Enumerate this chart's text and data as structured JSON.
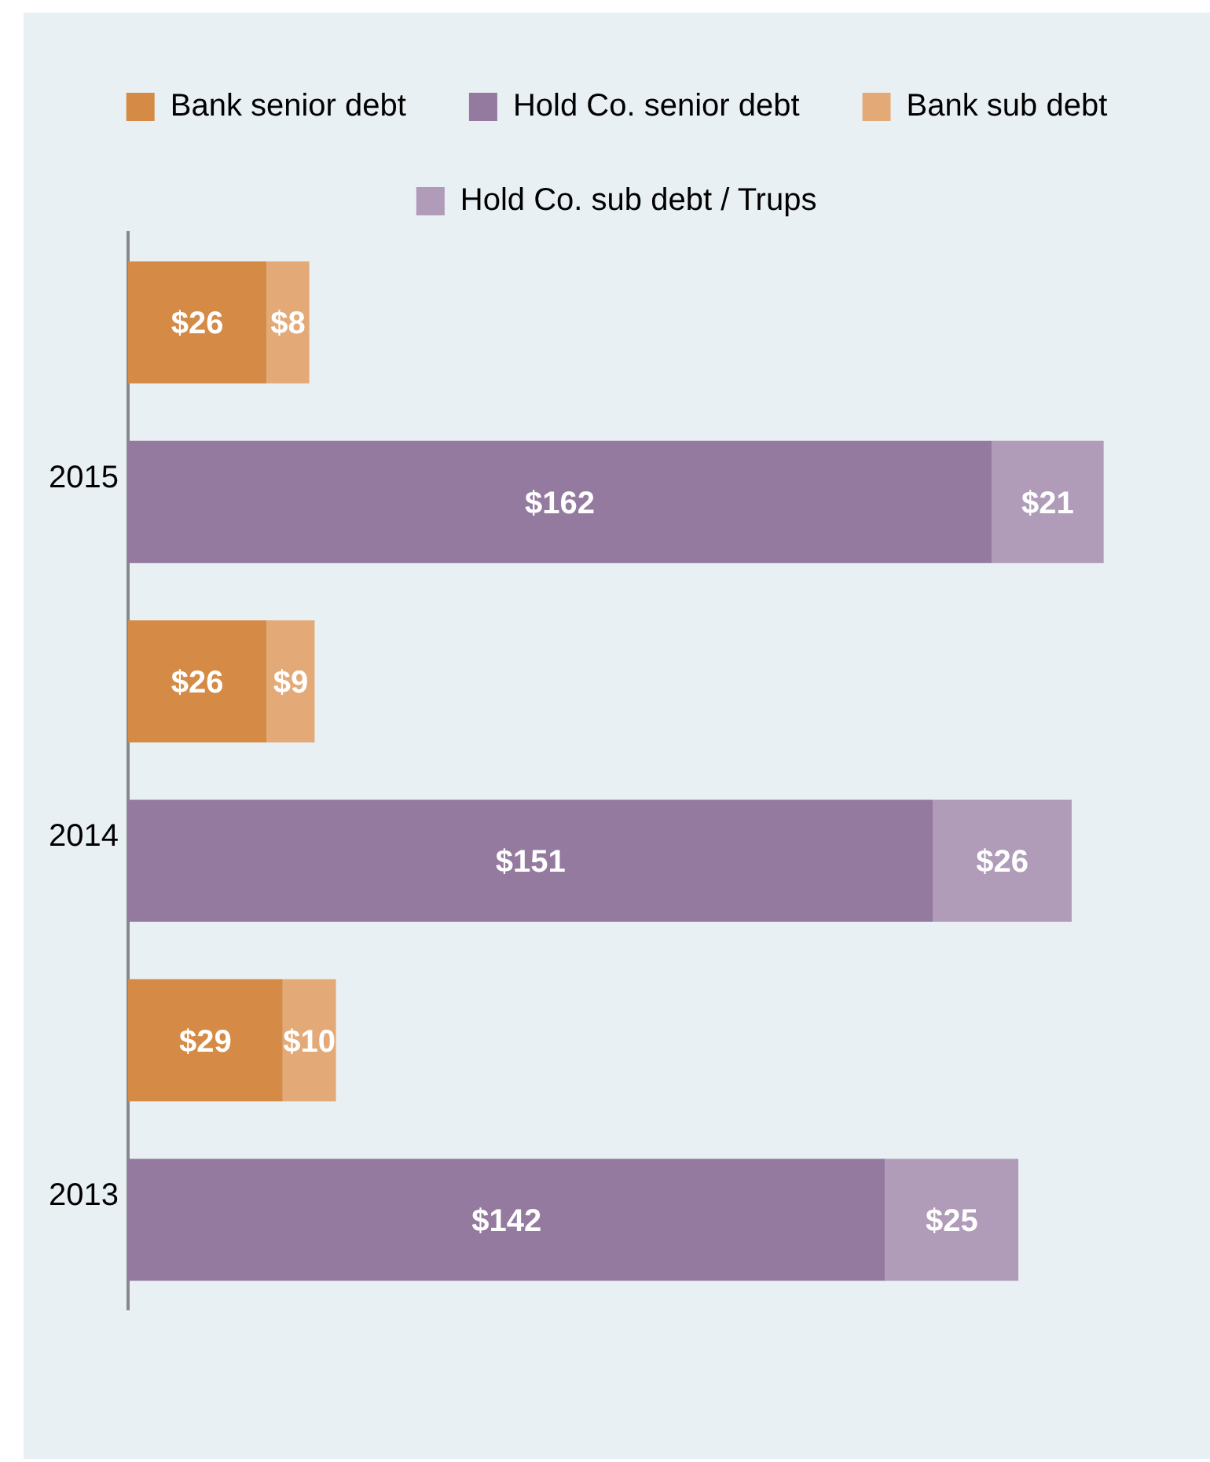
{
  "chart_data": {
    "type": "bar",
    "orientation": "horizontal",
    "stacked": true,
    "categories": [
      null,
      "2015",
      null,
      "2014",
      null,
      "2013"
    ],
    "series": [
      {
        "name": "Bank senior debt",
        "color": "#d58a45",
        "values": [
          26,
          null,
          26,
          null,
          29,
          null
        ],
        "value_labels": [
          "$26",
          null,
          "$26",
          null,
          "$29",
          null
        ]
      },
      {
        "name": "Bank sub debt",
        "color": "#e3aa78",
        "values": [
          8,
          null,
          9,
          null,
          10,
          null
        ],
        "value_labels": [
          "$8",
          null,
          "$9",
          null,
          "$10",
          null
        ]
      },
      {
        "name": "Hold Co. senior debt",
        "color": "#957aa0",
        "values": [
          null,
          162,
          null,
          151,
          null,
          142
        ],
        "value_labels": [
          null,
          "$162",
          null,
          "$151",
          null,
          "$142"
        ]
      },
      {
        "name": "Hold Co. sub debt / Trups",
        "color": "#b09bb8",
        "values": [
          null,
          21,
          null,
          26,
          null,
          25
        ],
        "value_labels": [
          null,
          "$21",
          null,
          "$26",
          null,
          "$25"
        ]
      }
    ],
    "legend": "top",
    "grid": false,
    "tick_labels": "y"
  }
}
